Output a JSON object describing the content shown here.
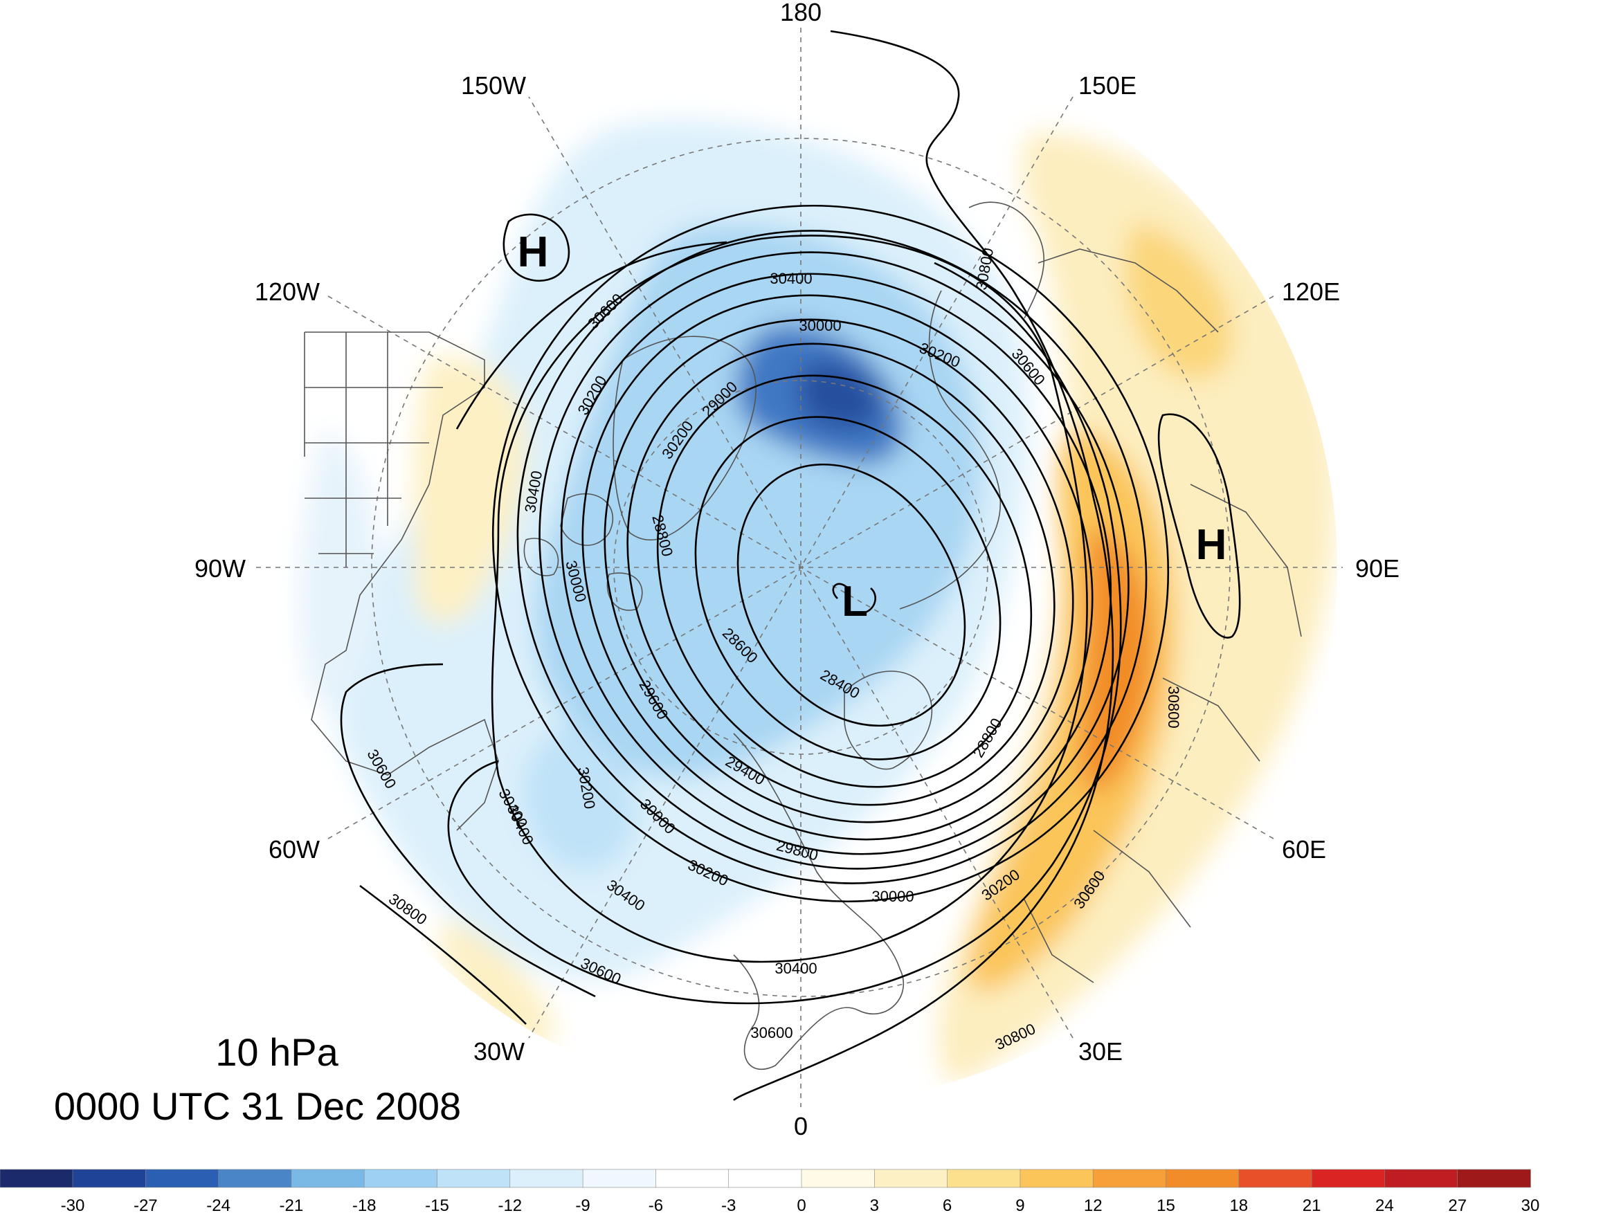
{
  "map": {
    "level": "10 hPa",
    "valid_time": "0000 UTC 31 Dec 2008",
    "longitude_labels": {
      "180": "180",
      "150E": "150E",
      "120E": "120E",
      "90E": "90E",
      "60E": "60E",
      "30E": "30E",
      "0": "0",
      "30W": "30W",
      "60W": "60W",
      "90W": "90W",
      "120W": "120W",
      "150W": "150W"
    },
    "pressure_centers": [
      {
        "label": "H",
        "where": "north Pacific / Alaska"
      },
      {
        "label": "H",
        "where": "central Asia"
      },
      {
        "label": "L",
        "where": "north polar"
      }
    ],
    "contour_labels": [
      "30400",
      "30600",
      "30000",
      "30200",
      "30200",
      "30600",
      "30200",
      "29000",
      "30400",
      "28800",
      "30000",
      "28600",
      "28400",
      "29600",
      "28800",
      "30800",
      "29400",
      "30200",
      "30600",
      "30400",
      "30000",
      "29800",
      "30000",
      "30200",
      "30600",
      "30800",
      "30400",
      "30200",
      "30400",
      "30600",
      "30400",
      "30800",
      "30600",
      "30800"
    ],
    "shading_colors": {
      "deep_cold": "#2a5cb0",
      "cold": "#7ab8e6",
      "light_cold": "#d9ecf8",
      "light_warm": "#fdf0c4",
      "warm": "#fbc55a",
      "hot": "#f28c28"
    }
  },
  "colorbar": {
    "ticks": [
      "-30",
      "-27",
      "-24",
      "-21",
      "-18",
      "-15",
      "-12",
      "-9",
      "-6",
      "-3",
      "0",
      "3",
      "6",
      "9",
      "12",
      "15",
      "18",
      "21",
      "24",
      "27",
      "30"
    ],
    "colors": [
      "#1b2a6b",
      "#1f4397",
      "#2b5fb3",
      "#4a85c8",
      "#7ab8e6",
      "#9dd0f2",
      "#bfe2f8",
      "#dcf0fb",
      "#f0f8fd",
      "#ffffff",
      "#ffffff",
      "#fffbe6",
      "#fdf0c4",
      "#fde08e",
      "#fbc55a",
      "#f7a03a",
      "#f28c28",
      "#e8502a",
      "#d92423",
      "#c01d22",
      "#9e1a1a"
    ]
  }
}
